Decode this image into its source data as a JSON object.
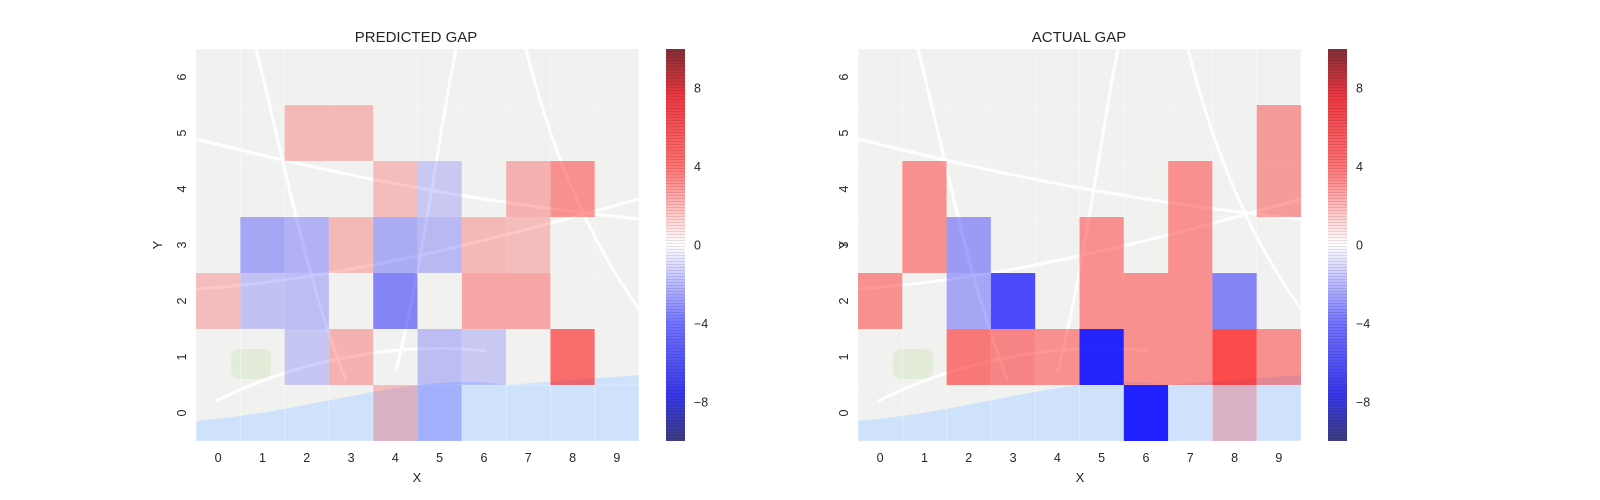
{
  "colors": {
    "map_bg": "#f1f1f0",
    "water": "#cfe2fb",
    "roads": "#ffffff",
    "park": "#dde9cf",
    "positive": "#ff0000",
    "negative": "#0000ff",
    "neutral": "#ffffff"
  },
  "colorbar_ticks": [
    "8",
    "4",
    "0",
    "−4",
    "−8"
  ],
  "colorbar_tick_values": [
    8,
    4,
    0,
    -4,
    -8
  ],
  "chart_data": [
    {
      "type": "heatmap",
      "title": "PREDICTED GAP",
      "xlabel": "X",
      "ylabel": "Y",
      "x_ticks": [
        "0",
        "1",
        "2",
        "3",
        "4",
        "5",
        "6",
        "7",
        "8",
        "9"
      ],
      "y_ticks": [
        "0",
        "1",
        "2",
        "3",
        "4",
        "5",
        "6"
      ],
      "colorbar_range": [
        -10,
        10
      ],
      "cells": [
        {
          "x": 2,
          "y": 5,
          "v": 1.2
        },
        {
          "x": 3,
          "y": 5,
          "v": 1.2
        },
        {
          "x": 4,
          "y": 4,
          "v": 1.0
        },
        {
          "x": 5,
          "y": 4,
          "v": -0.5
        },
        {
          "x": 7,
          "y": 4,
          "v": 1.5
        },
        {
          "x": 8,
          "y": 4,
          "v": 3.0
        },
        {
          "x": 1,
          "y": 3,
          "v": -2.0
        },
        {
          "x": 2,
          "y": 3,
          "v": -1.5
        },
        {
          "x": 3,
          "y": 3,
          "v": 1.2
        },
        {
          "x": 4,
          "y": 3,
          "v": -1.8
        },
        {
          "x": 5,
          "y": 3,
          "v": -1.2
        },
        {
          "x": 6,
          "y": 3,
          "v": 1.2
        },
        {
          "x": 7,
          "y": 3,
          "v": 1.0
        },
        {
          "x": 0,
          "y": 2,
          "v": 1.0
        },
        {
          "x": 1,
          "y": 2,
          "v": -0.8
        },
        {
          "x": 2,
          "y": 2,
          "v": -1.0
        },
        {
          "x": 4,
          "y": 2,
          "v": -3.5
        },
        {
          "x": 6,
          "y": 2,
          "v": 2.0
        },
        {
          "x": 7,
          "y": 2,
          "v": 2.0
        },
        {
          "x": 2,
          "y": 1,
          "v": -0.6
        },
        {
          "x": 3,
          "y": 1,
          "v": 1.5
        },
        {
          "x": 5,
          "y": 1,
          "v": -1.0
        },
        {
          "x": 6,
          "y": 1,
          "v": -0.5
        },
        {
          "x": 8,
          "y": 1,
          "v": 4.5
        },
        {
          "x": 4,
          "y": 0,
          "v": 1.0
        },
        {
          "x": 5,
          "y": 0,
          "v": -1.0
        }
      ]
    },
    {
      "type": "heatmap",
      "title": "ACTUAL GAP",
      "xlabel": "X",
      "ylabel": "Y",
      "x_ticks": [
        "0",
        "1",
        "2",
        "3",
        "4",
        "5",
        "6",
        "7",
        "8",
        "9"
      ],
      "y_ticks": [
        "0",
        "1",
        "2",
        "3",
        "4",
        "5",
        "6"
      ],
      "colorbar_range": [
        -10,
        10
      ],
      "cells": [
        {
          "x": 9,
          "y": 5,
          "v": 2.5
        },
        {
          "x": 1,
          "y": 4,
          "v": 3.0
        },
        {
          "x": 7,
          "y": 4,
          "v": 3.0
        },
        {
          "x": 9,
          "y": 4,
          "v": 2.5
        },
        {
          "x": 1,
          "y": 3,
          "v": 3.0
        },
        {
          "x": 2,
          "y": 3,
          "v": -2.5
        },
        {
          "x": 5,
          "y": 3,
          "v": 3.0
        },
        {
          "x": 7,
          "y": 3,
          "v": 3.0
        },
        {
          "x": 0,
          "y": 2,
          "v": 3.0
        },
        {
          "x": 2,
          "y": 2,
          "v": -2.0
        },
        {
          "x": 3,
          "y": 2,
          "v": -6.0
        },
        {
          "x": 5,
          "y": 2,
          "v": 3.0
        },
        {
          "x": 6,
          "y": 2,
          "v": 3.0
        },
        {
          "x": 7,
          "y": 2,
          "v": 3.0
        },
        {
          "x": 8,
          "y": 2,
          "v": -3.5
        },
        {
          "x": 2,
          "y": 1,
          "v": 4.0
        },
        {
          "x": 3,
          "y": 1,
          "v": 3.5
        },
        {
          "x": 4,
          "y": 1,
          "v": 3.0
        },
        {
          "x": 5,
          "y": 1,
          "v": -8.5
        },
        {
          "x": 6,
          "y": 1,
          "v": 3.0
        },
        {
          "x": 7,
          "y": 1,
          "v": 3.0
        },
        {
          "x": 8,
          "y": 1,
          "v": 6.0
        },
        {
          "x": 9,
          "y": 1,
          "v": 3.0
        },
        {
          "x": 6,
          "y": 0,
          "v": -8.5
        },
        {
          "x": 8,
          "y": 0,
          "v": 1.0
        }
      ]
    }
  ]
}
